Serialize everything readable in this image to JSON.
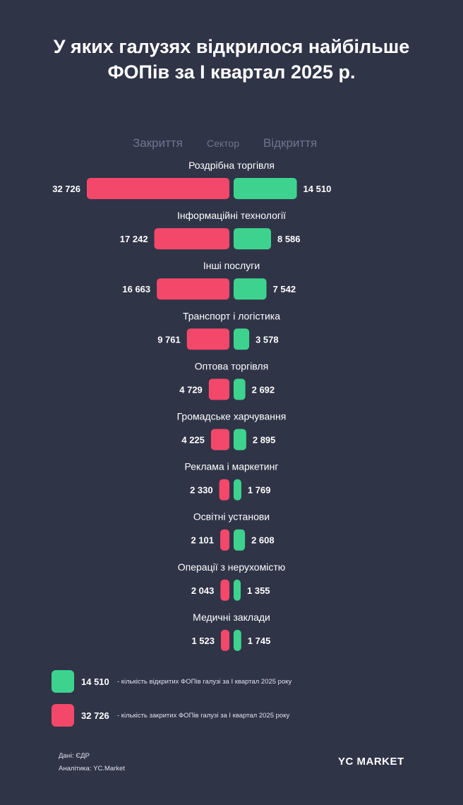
{
  "title_line1": "У яких галузях відкрилося найбільше",
  "title_line2": "ФОПів за I квартал 2025 р.",
  "header": {
    "closed": "Закриття",
    "sector": "Сектор",
    "opened": "Відкриття"
  },
  "colors": {
    "background": "#2f3447",
    "closed": "#f4486a",
    "opened": "#3dd38f",
    "header": "#6e7590"
  },
  "chart_data": {
    "type": "bar",
    "orientation": "horizontal-butterfly",
    "title": "У яких галузях відкрилося найбільше ФОПів за I квартал 2025 р.",
    "categories": [
      "Роздрібна торгівля",
      "Інформаційні технології",
      "Інші послуги",
      "Транспорт і логістика",
      "Оптова торгівля",
      "Громадське харчування",
      "Реклама і маркетинг",
      "Освітні установи",
      "Операції з нерухомістю",
      "Медичні заклади"
    ],
    "series": [
      {
        "name": "Закриття",
        "values": [
          32726,
          17242,
          16663,
          9761,
          4729,
          4225,
          2330,
          2101,
          2043,
          1523
        ]
      },
      {
        "name": "Відкриття",
        "values": [
          14510,
          8586,
          7542,
          3578,
          2692,
          2895,
          1769,
          2608,
          1355,
          1745
        ]
      }
    ],
    "closed_labels": [
      "32 726",
      "17 242",
      "16 663",
      "9 761",
      "4 729",
      "4 225",
      "2 330",
      "2 101",
      "2 043",
      "1 523"
    ],
    "opened_labels": [
      "14 510",
      "8 586",
      "7 542",
      "3 578",
      "2 692",
      "2 895",
      "1 769",
      "2 608",
      "1 355",
      "1 745"
    ],
    "legend_position": "bottom-left",
    "grid": false
  },
  "legend": {
    "opened_value": "14 510",
    "opened_text": "- кількість відкритих ФОПів галузі за I квартал 2025 року",
    "closed_value": "32 726",
    "closed_text": "- кількість закритих ФОПів галузі за I квартал 2025 року"
  },
  "footer": {
    "source": "Дані: ЄДР",
    "analytics": "Аналітика: YC.Market",
    "brand": "YC MARKET"
  }
}
